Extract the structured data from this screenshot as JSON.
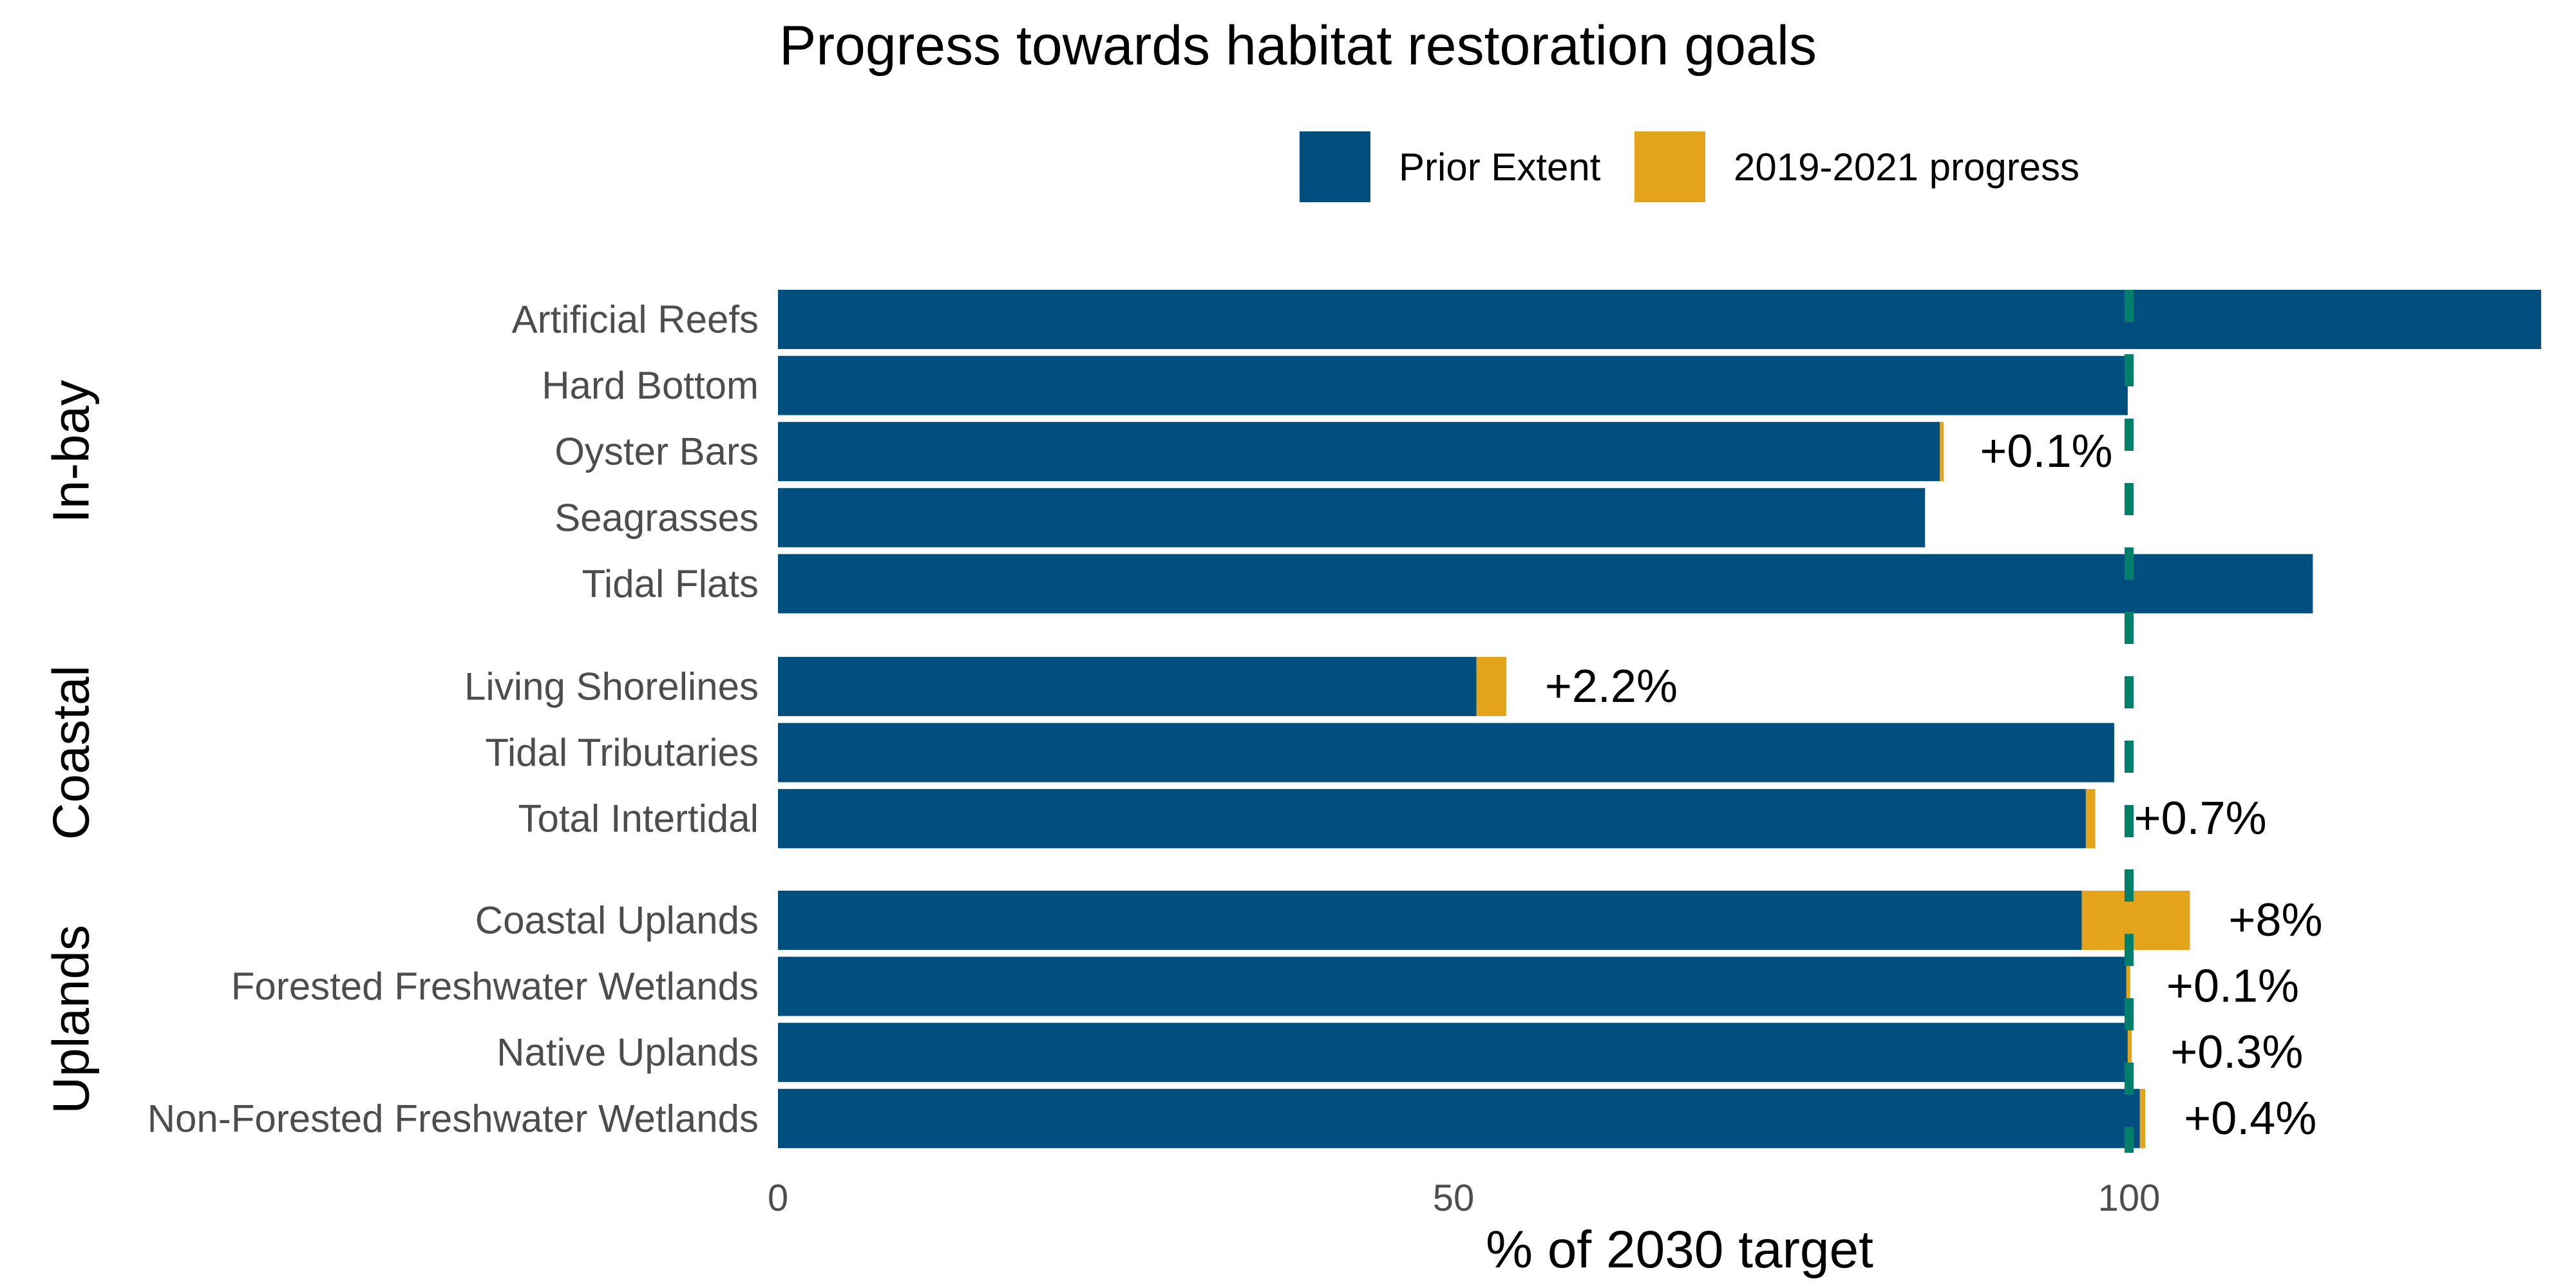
{
  "chart_data": {
    "type": "bar",
    "orientation": "horizontal",
    "stacked": true,
    "title": "Progress towards habitat restoration goals",
    "xlabel": "% of 2030 target",
    "xlim": [
      0,
      130
    ],
    "xticks": [
      0,
      50,
      100
    ],
    "grid": false,
    "legend_position": "top",
    "target_line": {
      "value": 100,
      "style": "dashed",
      "color": "#00806b"
    },
    "series": [
      {
        "name": "Prior Extent",
        "color": "#004f7e"
      },
      {
        "name": "2019-2021 progress",
        "color": "#e3a41b"
      }
    ],
    "groups": [
      {
        "name": "In-bay",
        "categories": [
          {
            "label": "Artificial Reefs",
            "prior": 130.5,
            "progress": 0,
            "progress_label": ""
          },
          {
            "label": "Hard Bottom",
            "prior": 99.9,
            "progress": 0,
            "progress_label": ""
          },
          {
            "label": "Oyster Bars",
            "prior": 86.0,
            "progress": 0.1,
            "progress_label": "+0.1%"
          },
          {
            "label": "Seagrasses",
            "prior": 84.9,
            "progress": 0,
            "progress_label": ""
          },
          {
            "label": "Tidal Flats",
            "prior": 113.6,
            "progress": 0,
            "progress_label": ""
          }
        ]
      },
      {
        "name": "Coastal",
        "categories": [
          {
            "label": "Living Shorelines",
            "prior": 51.7,
            "progress": 2.2,
            "progress_label": "+2.2%"
          },
          {
            "label": "Tidal Tributaries",
            "prior": 98.9,
            "progress": 0,
            "progress_label": ""
          },
          {
            "label": "Total Intertidal",
            "prior": 96.8,
            "progress": 0.7,
            "progress_label": "+0.7%"
          }
        ]
      },
      {
        "name": "Uplands",
        "categories": [
          {
            "label": "Coastal Uplands",
            "prior": 96.5,
            "progress": 8.0,
            "progress_label": "+8%"
          },
          {
            "label": "Forested Freshwater Wetlands",
            "prior": 99.8,
            "progress": 0.1,
            "progress_label": "+0.1%"
          },
          {
            "label": "Native Uplands",
            "prior": 99.9,
            "progress": 0.3,
            "progress_label": "+0.3%"
          },
          {
            "label": "Non-Forested Freshwater Wetlands",
            "prior": 100.8,
            "progress": 0.4,
            "progress_label": "+0.4%"
          }
        ]
      }
    ]
  }
}
